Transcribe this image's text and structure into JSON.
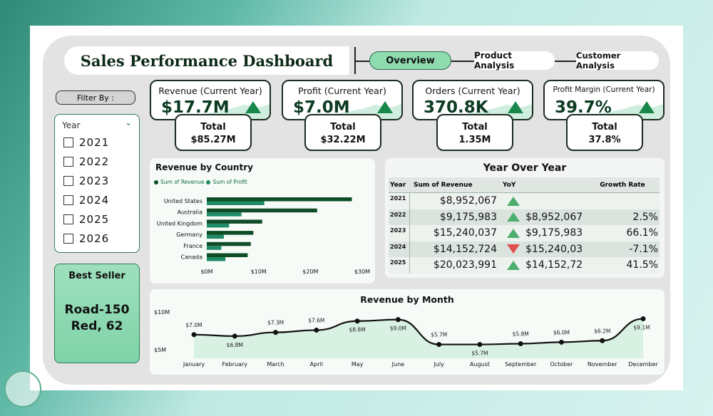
{
  "header": {
    "title": "Sales Performance Dashboard",
    "nav": [
      {
        "label": "Overview",
        "active": true
      },
      {
        "label": "Product Analysis"
      },
      {
        "label": "Customer Analysis"
      }
    ]
  },
  "filter": {
    "button_label": "Filter By :",
    "slicer_title": "Year",
    "options": [
      "2021",
      "2022",
      "2023",
      "2024",
      "2025",
      "2026"
    ]
  },
  "best_seller": {
    "title": "Best Seller",
    "line1": "Road-150",
    "line2": "Red, 62"
  },
  "kpis": [
    {
      "label": "Revenue (Current Year)",
      "value": "$17.7M",
      "total_label": "Total",
      "total": "$85.27M",
      "trend": "up"
    },
    {
      "label": "Profit (Current Year)",
      "value": "$7.0M",
      "total_label": "Total",
      "total": "$32.22M",
      "trend": "up"
    },
    {
      "label": "Orders  (Current Year)",
      "value": "370.8K",
      "total_label": "Total",
      "total": "1.35M",
      "trend": "up"
    },
    {
      "label": "Profit Margin (Current Year)",
      "value": "39.7%",
      "total_label": "Total",
      "total": "37.8%",
      "trend": "up"
    }
  ],
  "colors": {
    "revenue": "#0f4d26",
    "profit": "#1e8a66",
    "up": "#17874a",
    "down": "#e05050",
    "accent": "#8edbb0"
  },
  "yoy": {
    "title": "Year Over Year",
    "headers": [
      "Year",
      "Sum of Revenue",
      "YoY",
      "",
      "Growth Rate"
    ],
    "rows": [
      {
        "year": "2021",
        "revenue": "$8,952,067",
        "dir": "up",
        "prev": "",
        "growth": ""
      },
      {
        "year": "2022",
        "revenue": "$9,175,983",
        "dir": "up",
        "prev": "$8,952,067",
        "growth": "2.5%"
      },
      {
        "year": "2023",
        "revenue": "$15,240,037",
        "dir": "up",
        "prev": "$9,175,983",
        "growth": "66.1%"
      },
      {
        "year": "2024",
        "revenue": "$14,152,724",
        "dir": "down",
        "prev": "$15,240,03",
        "growth": "-7.1%"
      },
      {
        "year": "2025",
        "revenue": "$20,023,991",
        "dir": "up",
        "prev": "$14,152,72",
        "growth": "41.5%"
      }
    ]
  },
  "chart_data": [
    {
      "type": "bar",
      "orientation": "horizontal",
      "title": "Revenue by Country",
      "categories": [
        "United States",
        "Australia",
        "United Kingdom",
        "Germany",
        "France",
        "Canada"
      ],
      "series": [
        {
          "name": "Sum of Revenue",
          "values": [
            28,
            21.3,
            10.7,
            9,
            8.5,
            7.9
          ]
        },
        {
          "name": "Sum of Profit",
          "values": [
            11.1,
            6.7,
            4.3,
            3.3,
            2.8,
            3.6
          ]
        }
      ],
      "xticks": [
        "$0M",
        "$10M",
        "$20M",
        "$30M"
      ],
      "xlim": [
        0,
        30
      ],
      "unit": "M",
      "legend": "top-left"
    },
    {
      "type": "area",
      "title": "Revenue by Month",
      "categories": [
        "January",
        "February",
        "March",
        "April",
        "May",
        "June",
        "July",
        "August",
        "September",
        "October",
        "November",
        "December"
      ],
      "values": [
        7.0,
        6.8,
        7.3,
        7.6,
        8.8,
        9.0,
        5.7,
        5.7,
        5.8,
        6.0,
        6.2,
        9.1
      ],
      "labels": [
        "$7.0M",
        "$6.8M",
        "$7.3M",
        "$7.6M",
        "$8.8M",
        "$9.0M",
        "$5.7M",
        "$5.7M",
        "$5.8M",
        "$6.0M",
        "$6.2M",
        "$9.1M"
      ],
      "yticks": [
        "$10M",
        "$5M"
      ],
      "ylim": [
        5,
        10
      ]
    }
  ]
}
